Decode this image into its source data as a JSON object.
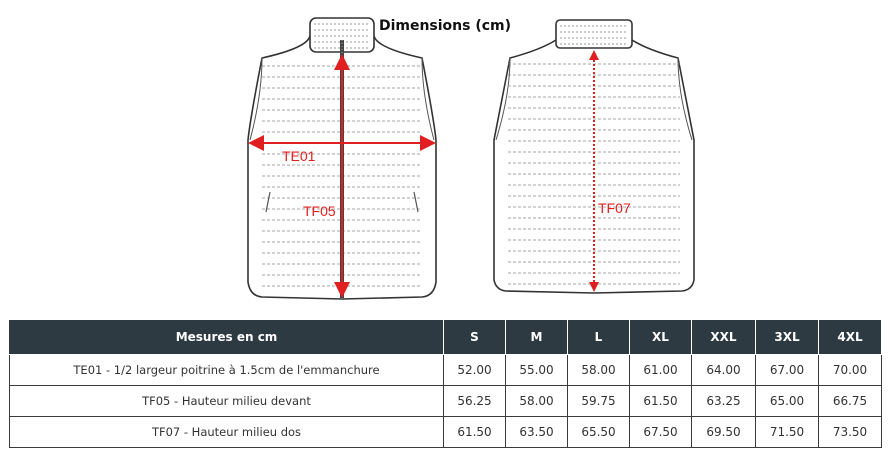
{
  "title": "Dimensions (cm)",
  "diagram_labels": {
    "te01": "TE01",
    "tf05": "TF05",
    "tf07": "TF07"
  },
  "colors": {
    "measure": "#e02020",
    "header_bg": "#2d3a42",
    "outline": "#333333"
  },
  "table": {
    "columns": [
      "Mesures en cm",
      "S",
      "M",
      "L",
      "XL",
      "XXL",
      "3XL",
      "4XL"
    ],
    "rows": [
      {
        "label": "TE01 - 1/2 largeur poitrine à 1.5cm de l'emmanchure",
        "values": [
          "52.00",
          "55.00",
          "58.00",
          "61.00",
          "64.00",
          "67.00",
          "70.00"
        ]
      },
      {
        "label": "TF05 - Hauteur milieu devant",
        "values": [
          "56.25",
          "58.00",
          "59.75",
          "61.50",
          "63.25",
          "65.00",
          "66.75"
        ]
      },
      {
        "label": "TF07 - Hauteur milieu dos",
        "values": [
          "61.50",
          "63.50",
          "65.50",
          "67.50",
          "69.50",
          "71.50",
          "73.50"
        ]
      }
    ]
  }
}
